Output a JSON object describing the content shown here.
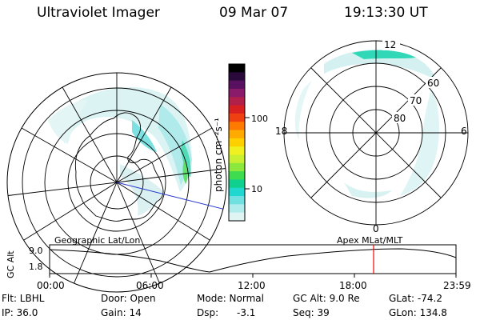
{
  "header": {
    "instrument": "Ultraviolet Imager",
    "date": "09 Mar 07",
    "time": "19:13:30 UT"
  },
  "left_map": {
    "caption": "Geographic Lat/Lon"
  },
  "right_map": {
    "caption": "Apex  MLat/MLT",
    "mlt_labels": {
      "top": "12",
      "bottom": "0",
      "left": "18",
      "right": "6"
    },
    "lat_labels": [
      "60",
      "70",
      "80"
    ]
  },
  "colorbar": {
    "unit_label": "photon cm⁻²s⁻¹",
    "ticks": [
      "100",
      "10"
    ],
    "colors": [
      "#000000",
      "#2a0a3a",
      "#5a1060",
      "#8a1a6a",
      "#b0204a",
      "#d82020",
      "#ee4010",
      "#ff7a00",
      "#ffaa00",
      "#ffd000",
      "#f0f020",
      "#c8f030",
      "#8ce83c",
      "#40dc50",
      "#10d090",
      "#20d8d0",
      "#70e0e0",
      "#b0ecec",
      "#e0f4f4"
    ]
  },
  "timeline": {
    "ylabel": "GC Alt",
    "ytick_top": "9.0",
    "ytick_bottom": "1.8",
    "xticks": [
      "00:00",
      "06:00",
      "12:00",
      "18:00",
      "23:59"
    ],
    "marker_color": "#ff0000"
  },
  "status": {
    "flt": "Flt: LBHL",
    "ip": "IP: 36.0",
    "door": "Door: Open",
    "gain": "Gain: 14",
    "mode": "Mode: Normal",
    "dsp": "Dsp:",
    "dsp_value": "-3.1",
    "gc_alt": "GC Alt: 9.0 Re",
    "seq": "Seq: 39",
    "glat": "GLat: -74.2",
    "glon": "GLon: 134.8"
  }
}
